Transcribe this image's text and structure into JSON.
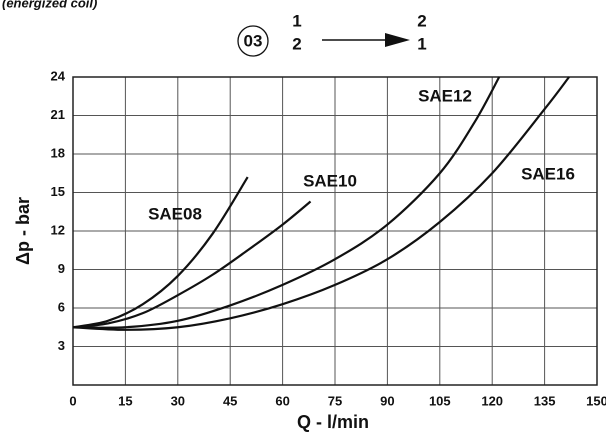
{
  "chart_data": {
    "type": "line",
    "title": "(energized coil)",
    "flow_symbol": {
      "circle": "03",
      "from": [
        "1",
        "2"
      ],
      "to": [
        "2",
        "1"
      ]
    },
    "x_label": "Q - l/min",
    "y_label": "Δp - bar",
    "xlim": [
      0,
      150
    ],
    "ylim": [
      0,
      24
    ],
    "xticks": [
      0,
      15,
      30,
      45,
      60,
      75,
      90,
      105,
      120,
      135,
      150
    ],
    "yticks": [
      3,
      6,
      9,
      12,
      15,
      18,
      21,
      24
    ],
    "grid": true,
    "series": [
      {
        "name": "SAE08",
        "color": "#111111",
        "x": [
          0,
          10,
          20,
          30,
          40,
          50
        ],
        "values": [
          4.5,
          5,
          6.3,
          8.5,
          11.8,
          16.2
        ]
      },
      {
        "name": "SAE10",
        "color": "#111111",
        "x": [
          0,
          10,
          20,
          30,
          40,
          50,
          60,
          68
        ],
        "values": [
          4.5,
          4.8,
          5.6,
          7,
          8.6,
          10.5,
          12.5,
          14.3
        ]
      },
      {
        "name": "SAE12",
        "color": "#111111",
        "x": [
          0,
          15,
          30,
          45,
          60,
          75,
          90,
          105,
          115,
          122
        ],
        "values": [
          4.5,
          4.5,
          5,
          6.2,
          7.8,
          9.8,
          12.5,
          16.5,
          20.5,
          24
        ]
      },
      {
        "name": "SAE16",
        "color": "#111111",
        "x": [
          0,
          15,
          30,
          45,
          60,
          75,
          90,
          105,
          120,
          135,
          142
        ],
        "values": [
          4.5,
          4.3,
          4.5,
          5.2,
          6.3,
          7.8,
          9.8,
          12.7,
          16.5,
          21.5,
          24
        ]
      }
    ]
  }
}
